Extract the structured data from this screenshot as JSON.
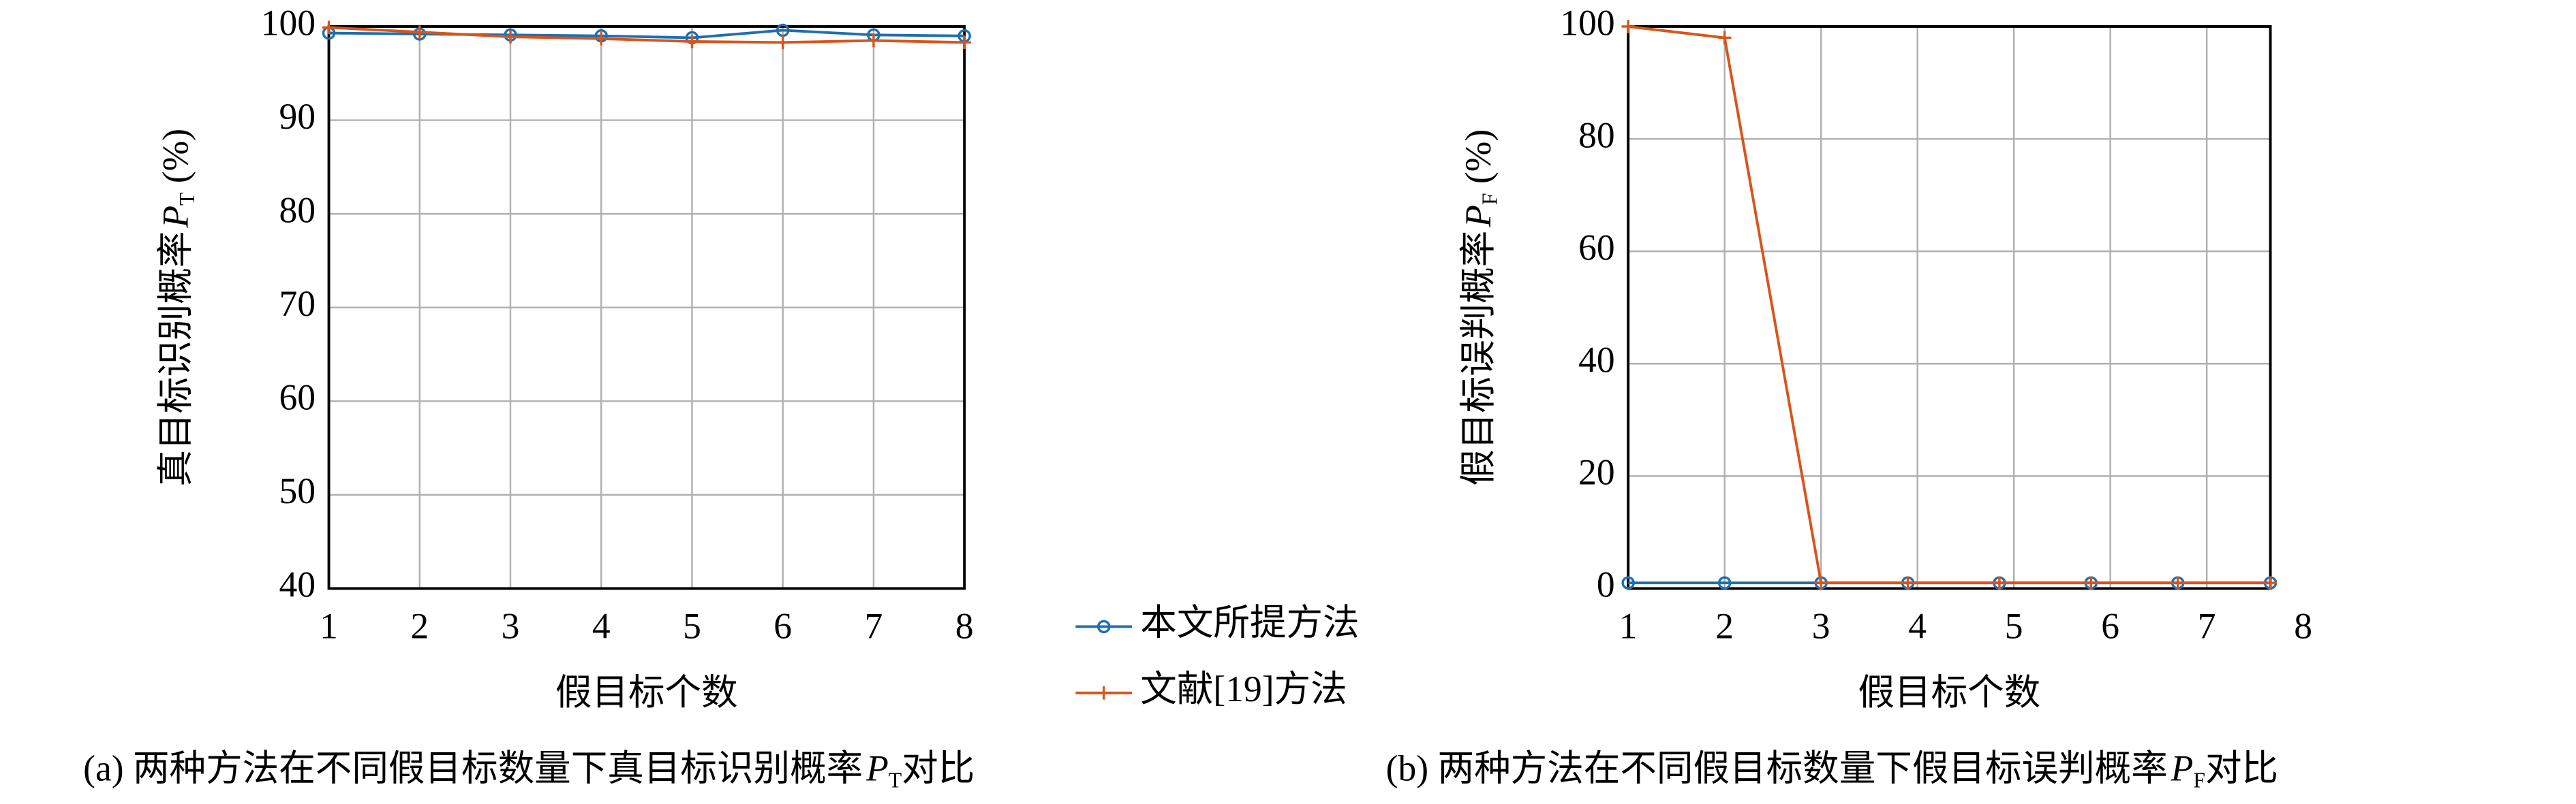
{
  "chart_data": [
    {
      "type": "line",
      "x": [
        1,
        2,
        3,
        4,
        5,
        6,
        7,
        8
      ],
      "xlim": [
        1,
        8
      ],
      "ylim": [
        40,
        100
      ],
      "xticks": [
        1,
        2,
        3,
        4,
        5,
        6,
        7,
        8
      ],
      "yticks": [
        40,
        50,
        60,
        70,
        80,
        90,
        100
      ],
      "grid": true,
      "xlabel": "假目标个数",
      "ylabel": {
        "text": "真目标识别概率",
        "symbol": "P",
        "subscript": "T",
        "unit": " (%)"
      },
      "caption": {
        "text": "(a) 两种方法在不同假目标数量下真目标识别概率",
        "symbol": "P",
        "subscript": "T",
        "tail": "对比"
      },
      "series": [
        {
          "name": "本文所提方法",
          "color": "#1f6fb0",
          "marker": "circle",
          "values": [
            99.3,
            99.2,
            99.1,
            99.0,
            98.8,
            99.6,
            99.1,
            99.0
          ]
        },
        {
          "name": "文献[19]方法",
          "color": "#d9541a",
          "marker": "plus",
          "values": [
            99.9,
            99.4,
            98.9,
            98.7,
            98.4,
            98.3,
            98.5,
            98.3
          ]
        }
      ]
    },
    {
      "type": "line",
      "x": [
        1,
        2,
        3,
        3.9,
        4.85,
        5.8,
        6.7,
        7.66
      ],
      "xlim": [
        1,
        7.66
      ],
      "ylim": [
        0,
        100
      ],
      "xticks": [
        1,
        2,
        3,
        4,
        5,
        6,
        7,
        8
      ],
      "yticks": [
        0,
        20,
        40,
        60,
        80,
        100
      ],
      "grid": true,
      "xlabel": "假目标个数",
      "ylabel": {
        "text": "假目标误判概率",
        "symbol": "P",
        "subscript": "F",
        "unit": " (%)"
      },
      "caption": {
        "text": "(b) 两种方法在不同假目标数量下假目标误判概率",
        "symbol": "P",
        "subscript": "F",
        "tail": "对比"
      },
      "series": [
        {
          "color": "#1f6fb0",
          "marker": "circle",
          "values": [
            1,
            1,
            1,
            1,
            1,
            1,
            1,
            1
          ]
        },
        {
          "color": "#d9541a",
          "marker": "plus",
          "values": [
            100,
            98,
            1,
            1,
            1,
            1,
            1,
            1
          ]
        }
      ]
    }
  ]
}
